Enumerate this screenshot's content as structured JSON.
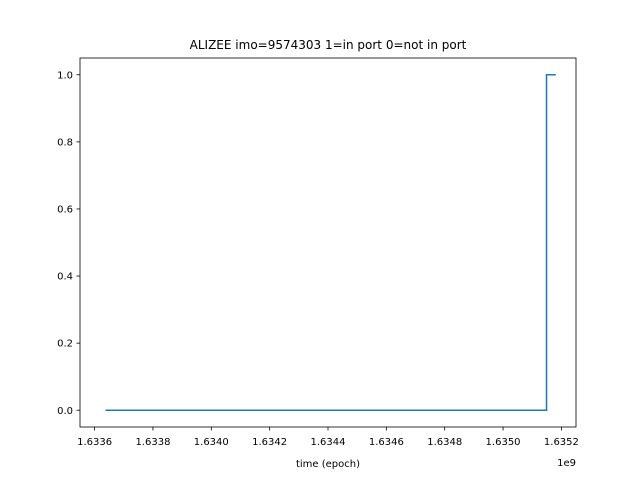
{
  "chart_data": {
    "type": "line",
    "title": "ALIZEE imo=9574303 1=in port 0=not in port",
    "xlabel": "time (epoch)",
    "ylabel": "",
    "x_offset_label": "1e9",
    "xlim": [
      1633550000.0,
      1635250000.0
    ],
    "ylim": [
      -0.05,
      1.05
    ],
    "x_ticks": [
      1633600000.0,
      1633800000.0,
      1634000000.0,
      1634200000.0,
      1634400000.0,
      1634600000.0,
      1634800000.0,
      1635000000.0,
      1635200000.0
    ],
    "x_tick_labels": [
      "1.6336",
      "1.6338",
      "1.6340",
      "1.6342",
      "1.6344",
      "1.6346",
      "1.6348",
      "1.6350",
      "1.6352"
    ],
    "y_ticks": [
      0.0,
      0.2,
      0.4,
      0.6,
      0.8,
      1.0
    ],
    "y_tick_labels": [
      "0.0",
      "0.2",
      "0.4",
      "0.6",
      "0.8",
      "1.0"
    ],
    "grid": false,
    "series": [
      {
        "step": "post",
        "color": "#1f77b4",
        "x": [
          1633640000.0,
          1635149000.0,
          1635149000.0,
          1635178000.0
        ],
        "y": [
          0,
          0,
          1,
          1
        ]
      }
    ]
  }
}
